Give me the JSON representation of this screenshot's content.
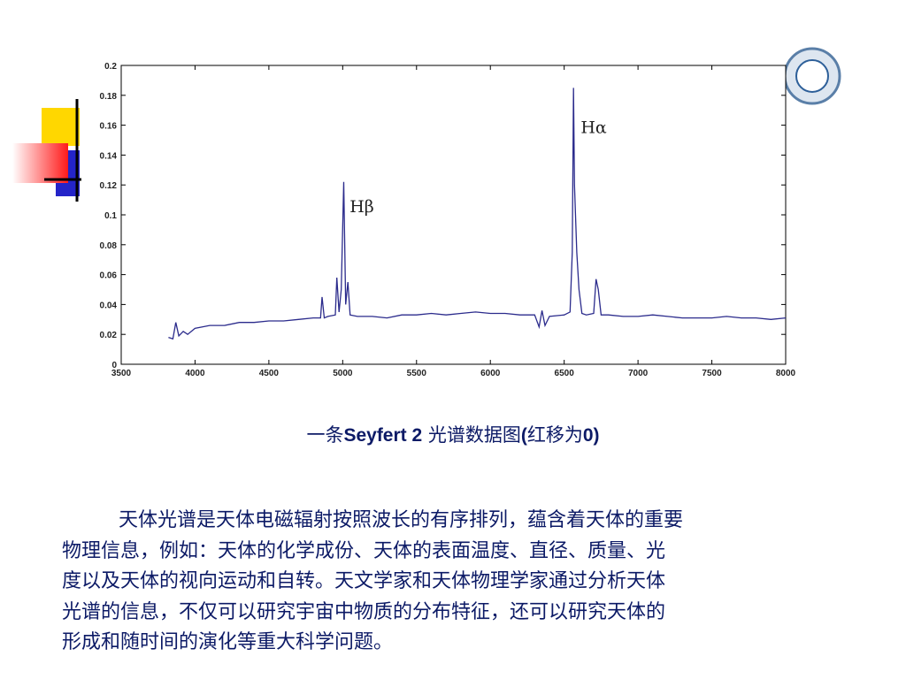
{
  "chart_data": {
    "type": "line",
    "color": "#2b2b8c",
    "x": [
      3820,
      3850,
      3870,
      3890,
      3920,
      3950,
      4000,
      4100,
      4200,
      4300,
      4400,
      4500,
      4600,
      4700,
      4800,
      4850,
      4860,
      4875,
      4900,
      4950,
      4960,
      4975,
      4990,
      5007,
      5020,
      5035,
      5050,
      5100,
      5200,
      5300,
      5400,
      5500,
      5600,
      5700,
      5800,
      5900,
      6000,
      6100,
      6200,
      6300,
      6330,
      6350,
      6370,
      6400,
      6500,
      6540,
      6555,
      6563,
      6570,
      6585,
      6600,
      6620,
      6650,
      6700,
      6716,
      6731,
      6750,
      6800,
      6900,
      7000,
      7100,
      7200,
      7300,
      7400,
      7500,
      7600,
      7700,
      7800,
      7900,
      8000
    ],
    "values": [
      0.018,
      0.017,
      0.028,
      0.019,
      0.022,
      0.02,
      0.024,
      0.026,
      0.026,
      0.028,
      0.028,
      0.029,
      0.029,
      0.03,
      0.031,
      0.031,
      0.045,
      0.031,
      0.032,
      0.033,
      0.058,
      0.035,
      0.05,
      0.122,
      0.04,
      0.055,
      0.033,
      0.032,
      0.032,
      0.031,
      0.033,
      0.033,
      0.034,
      0.033,
      0.034,
      0.035,
      0.034,
      0.034,
      0.033,
      0.033,
      0.025,
      0.036,
      0.026,
      0.032,
      0.033,
      0.035,
      0.075,
      0.185,
      0.12,
      0.075,
      0.05,
      0.034,
      0.033,
      0.034,
      0.057,
      0.05,
      0.033,
      0.033,
      0.032,
      0.032,
      0.033,
      0.032,
      0.031,
      0.031,
      0.031,
      0.032,
      0.031,
      0.031,
      0.03,
      0.031
    ],
    "xlim": [
      3500,
      8000
    ],
    "xticks": [
      3500,
      4000,
      4500,
      5000,
      5500,
      6000,
      6500,
      7000,
      7500,
      8000
    ],
    "ylim": [
      0,
      0.2
    ],
    "yticks": [
      0,
      0.02,
      0.04,
      0.06,
      0.08,
      0.1,
      0.12,
      0.14,
      0.16,
      0.18,
      0.2
    ],
    "annotations": [
      {
        "text": "Hβ",
        "x": 5130,
        "y": 0.106
      },
      {
        "text": "Hα",
        "x": 6700,
        "y": 0.159
      }
    ]
  },
  "caption": [
    "一条",
    "Seyfert 2",
    " 光谱数据图",
    "(",
    "红移为",
    "0",
    ")"
  ],
  "paragraph": [
    "天体光谱是天体电磁辐射按照波长的有序排列，蕴含着天体的重要",
    "物理信息，例如：天体的化学成份、天体的表面温度、直径、质量、光",
    "度以及天体的视向运动和自转。天文学家和天体物理学家通过分析天体",
    "光谱的信息，不仅可以研究宇宙中物质的分布特征，还可以研究天体的",
    "形成和随时间的演化等重大科学问题。"
  ]
}
